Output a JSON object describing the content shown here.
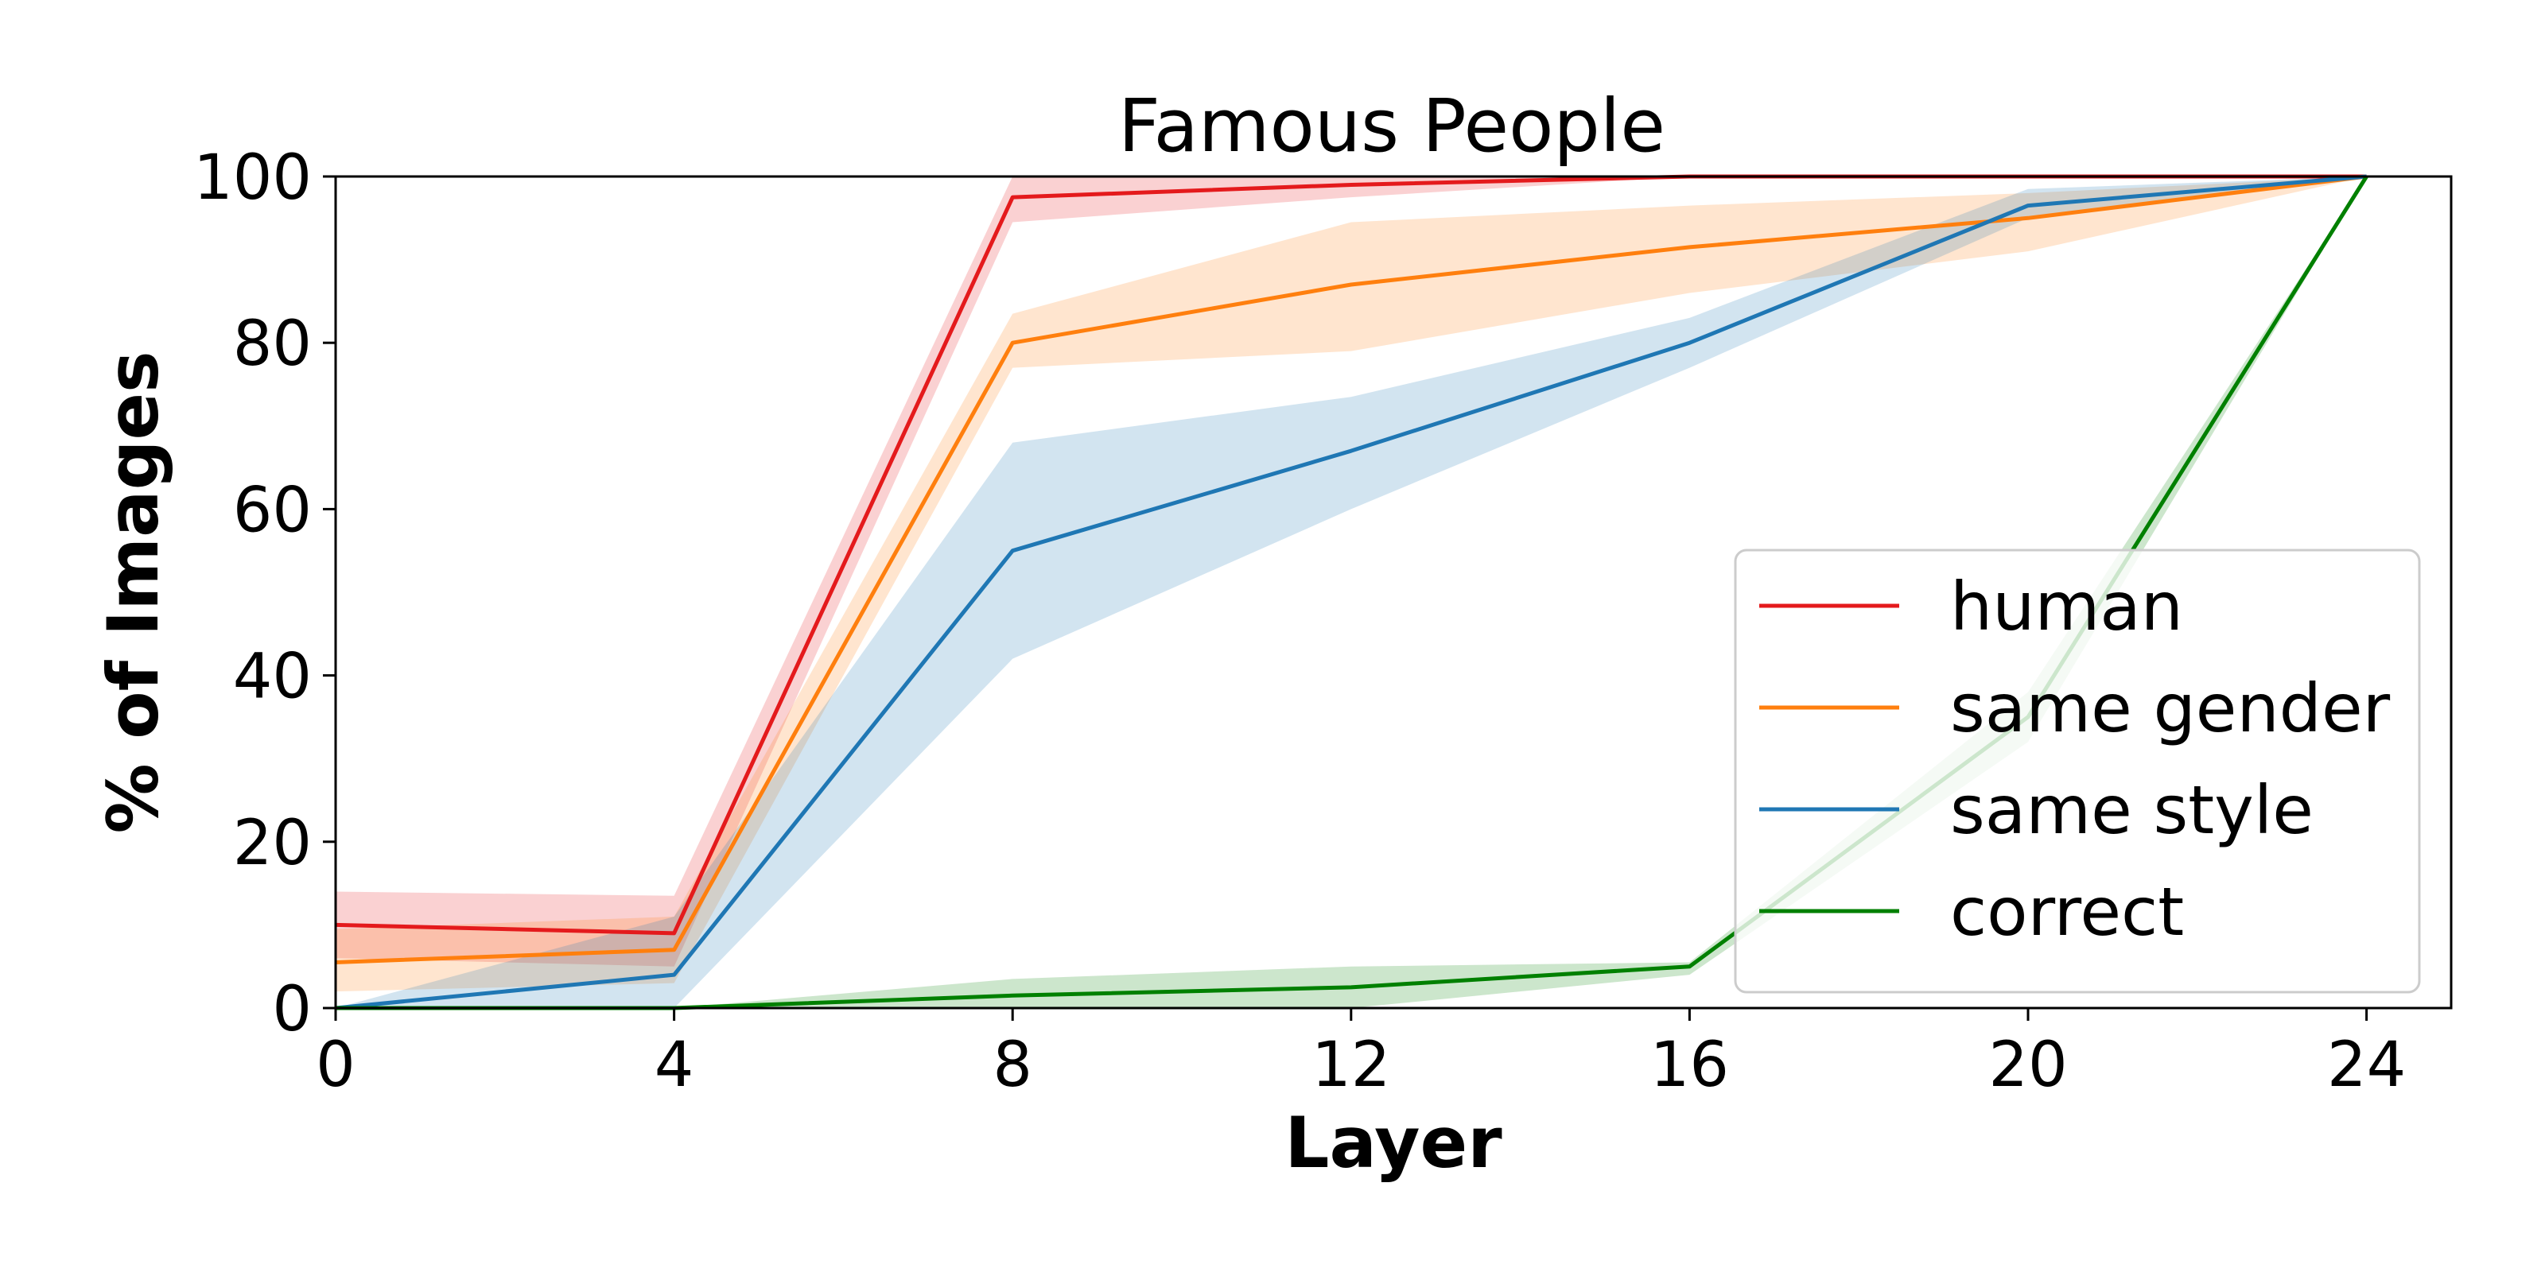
{
  "chart_data": {
    "type": "line",
    "title": "Famous People",
    "xlabel": "Layer",
    "ylabel": "% of Images",
    "x": [
      0,
      4,
      8,
      12,
      16,
      20,
      24
    ],
    "x_ticks": [
      "0",
      "4",
      "8",
      "12",
      "16",
      "20",
      "24"
    ],
    "y_ticks": [
      "0",
      "20",
      "40",
      "60",
      "80",
      "100"
    ],
    "xlim": [
      0,
      25
    ],
    "ylim": [
      0,
      100
    ],
    "grid": false,
    "legend_position": "lower-right",
    "series": [
      {
        "name": "human",
        "color": "#e41a1c",
        "values": [
          10,
          9,
          97.5,
          99,
          100,
          100,
          100
        ],
        "lower": [
          6,
          5,
          94.5,
          97.5,
          100,
          100,
          100
        ],
        "upper": [
          14,
          13.5,
          100,
          100,
          100,
          100,
          100
        ]
      },
      {
        "name": "same gender",
        "color": "#ff7f0e",
        "values": [
          5.5,
          7,
          80,
          87,
          91.5,
          95,
          100
        ],
        "lower": [
          2,
          3,
          77,
          79,
          86,
          91,
          100
        ],
        "upper": [
          9.5,
          11,
          83.5,
          94.5,
          96.5,
          98,
          100
        ]
      },
      {
        "name": "same style",
        "color": "#1f77b4",
        "values": [
          0,
          4,
          55,
          67,
          80,
          96.5,
          100
        ],
        "lower": [
          0,
          0,
          42,
          60,
          77,
          95,
          100
        ],
        "upper": [
          0,
          11,
          68,
          73.5,
          83,
          98.5,
          100
        ]
      },
      {
        "name": "correct",
        "color": "#008000",
        "values": [
          0,
          0,
          1.5,
          2.5,
          5,
          35,
          100
        ],
        "lower": [
          0,
          0,
          0,
          0,
          4,
          32,
          100
        ],
        "upper": [
          0,
          0,
          3.5,
          5,
          5.5,
          38,
          100
        ]
      }
    ]
  }
}
